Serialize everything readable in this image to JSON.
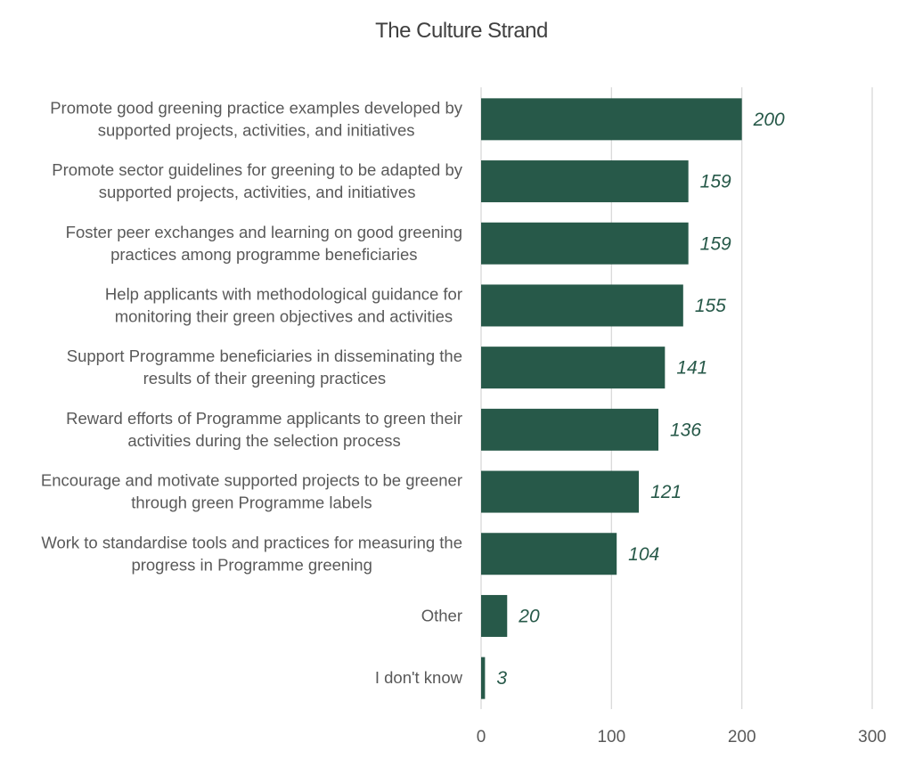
{
  "chart_data": {
    "type": "bar",
    "orientation": "horizontal",
    "title": "The Culture Strand",
    "xlabel": "",
    "ylabel": "",
    "categories": [
      [
        "Promote good greening practice examples developed by",
        "supported projects, activities, and initiatives"
      ],
      [
        "Promote sector guidelines for greening to be adapted by",
        "supported projects, activities, and initiatives"
      ],
      [
        "Foster peer exchanges and learning on good greening",
        "practices among programme beneficiaries"
      ],
      [
        "Help applicants with methodological guidance for",
        "monitoring their green objectives and activities"
      ],
      [
        "Support Programme beneficiaries in disseminating the",
        "results of their greening practices"
      ],
      [
        "Reward efforts of Programme applicants to green their",
        "activities during the selection process"
      ],
      [
        "Encourage and motivate supported projects to be greener",
        "through green Programme labels"
      ],
      [
        "Work to standardise tools and practices for measuring the",
        "progress in Programme greening"
      ],
      [
        "Other"
      ],
      [
        "I don't know"
      ]
    ],
    "values": [
      200,
      159,
      159,
      155,
      141,
      136,
      121,
      104,
      20,
      3
    ],
    "data_labels": [
      "200",
      "159",
      "159",
      "155",
      "141",
      "136",
      "121",
      "104",
      "20",
      "3"
    ],
    "xlim": [
      0,
      300
    ],
    "x_ticks": [
      0,
      100,
      200,
      300
    ],
    "x_tick_labels": [
      "0",
      "100",
      "200",
      "300"
    ],
    "grid": true,
    "legend": "none",
    "colors": {
      "bar": "#275949",
      "data_label": "#275949",
      "text": "#595959",
      "title": "#404040",
      "gridline": "#d9d9d9"
    }
  }
}
